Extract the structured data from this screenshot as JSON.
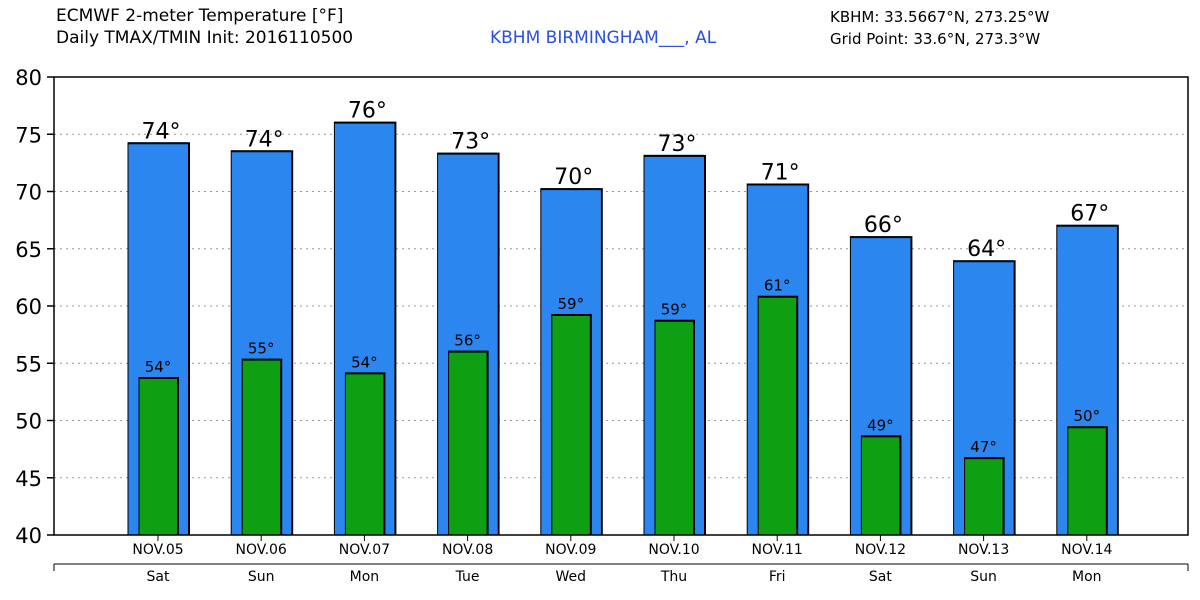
{
  "header": {
    "title_line1": "ECMWF 2-meter Temperature [°F]",
    "title_line2": "Daily TMAX/TMIN Init: 2016110500",
    "station": "KBHM BIRMINGHAM___, AL",
    "station_coords": "KBHM: 33.5667°N, 273.25°W",
    "grid_point": "Grid Point: 33.6°N, 273.3°W"
  },
  "colors": {
    "tmax_bar": "#2b86f0",
    "tmin_bar": "#0f9f12",
    "station_text": "#2a4fe0",
    "grid": "#9a9a9a"
  },
  "chart_data": {
    "type": "bar",
    "categories": [
      "NOV.05",
      "NOV.06",
      "NOV.07",
      "NOV.08",
      "NOV.09",
      "NOV.10",
      "NOV.11",
      "NOV.12",
      "NOV.13",
      "NOV.14"
    ],
    "days": [
      "Sat",
      "Sun",
      "Mon",
      "Tue",
      "Wed",
      "Thu",
      "Fri",
      "Sat",
      "Sun",
      "Mon"
    ],
    "series": [
      {
        "values": [
          74.3,
          73.6,
          76.1,
          73.4,
          70.3,
          73.2,
          70.7,
          66.1,
          64.0,
          67.1
        ],
        "labels": [
          "74°",
          "74°",
          "76°",
          "73°",
          "70°",
          "73°",
          "71°",
          "66°",
          "64°",
          "67°"
        ]
      },
      {
        "values": [
          53.8,
          55.4,
          54.2,
          56.1,
          59.3,
          58.8,
          60.9,
          48.7,
          46.8,
          49.5
        ],
        "labels": [
          "54°",
          "55°",
          "54°",
          "56°",
          "59°",
          "59°",
          "61°",
          "49°",
          "47°",
          "50°"
        ]
      }
    ],
    "ylim": [
      40,
      80
    ],
    "yticks": [
      "40",
      "45",
      "50",
      "55",
      "60",
      "65",
      "70",
      "75",
      "80"
    ],
    "grid": true
  }
}
